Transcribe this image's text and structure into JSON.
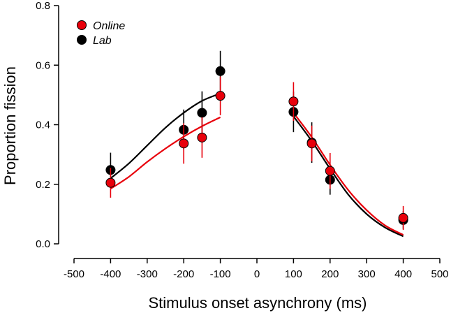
{
  "chart_data": {
    "type": "scatter",
    "xlabel": "Stimulus onset asynchrony (ms)",
    "ylabel": "Proportion fission",
    "xlim": [
      -500,
      500
    ],
    "ylim": [
      0.0,
      0.8
    ],
    "xticks": [
      -500,
      -400,
      -300,
      -200,
      -100,
      0,
      100,
      200,
      300,
      400,
      500
    ],
    "xtick_labels": [
      "-500",
      "-400",
      "-300",
      "-200",
      "-100",
      "0",
      "100",
      "200",
      "300",
      "400",
      "500"
    ],
    "yticks": [
      0.0,
      0.2,
      0.4,
      0.6,
      0.8
    ],
    "ytick_labels": [
      "0.0",
      "0.2",
      "0.4",
      "0.6",
      "0.8"
    ],
    "legend": [
      "Online",
      "Lab"
    ],
    "legend_position": "top-left",
    "series": [
      {
        "name": "Lab",
        "color": "#000000",
        "points": [
          {
            "x": -400,
            "y": 0.248,
            "err": 0.058
          },
          {
            "x": -200,
            "y": 0.383,
            "err": 0.068
          },
          {
            "x": -150,
            "y": 0.44,
            "err": 0.072
          },
          {
            "x": -100,
            "y": 0.58,
            "err": 0.068
          },
          {
            "x": 100,
            "y": 0.443,
            "err": 0.068
          },
          {
            "x": 150,
            "y": 0.34,
            "err": 0.068
          },
          {
            "x": 200,
            "y": 0.215,
            "err": 0.05
          },
          {
            "x": 400,
            "y": 0.08,
            "err": 0.03
          }
        ],
        "fit_left": [
          [
            -400,
            0.22
          ],
          [
            -350,
            0.27
          ],
          [
            -300,
            0.33
          ],
          [
            -250,
            0.39
          ],
          [
            -200,
            0.44
          ],
          [
            -150,
            0.48
          ],
          [
            -100,
            0.505
          ]
        ],
        "fit_right": [
          [
            100,
            0.428
          ],
          [
            150,
            0.345
          ],
          [
            200,
            0.252
          ],
          [
            250,
            0.165
          ],
          [
            300,
            0.1
          ],
          [
            350,
            0.055
          ],
          [
            400,
            0.025
          ]
        ]
      },
      {
        "name": "Online",
        "color": "#e8000b",
        "points": [
          {
            "x": -400,
            "y": 0.205,
            "err": 0.05
          },
          {
            "x": -200,
            "y": 0.337,
            "err": 0.068
          },
          {
            "x": -150,
            "y": 0.357,
            "err": 0.068
          },
          {
            "x": -100,
            "y": 0.497,
            "err": 0.065
          },
          {
            "x": 100,
            "y": 0.478,
            "err": 0.065
          },
          {
            "x": 150,
            "y": 0.337,
            "err": 0.06
          },
          {
            "x": 200,
            "y": 0.245,
            "err": 0.06
          },
          {
            "x": 400,
            "y": 0.087,
            "err": 0.04
          }
        ],
        "fit_left": [
          [
            -400,
            0.185
          ],
          [
            -350,
            0.225
          ],
          [
            -300,
            0.275
          ],
          [
            -250,
            0.32
          ],
          [
            -200,
            0.36
          ],
          [
            -150,
            0.395
          ],
          [
            -100,
            0.425
          ]
        ],
        "fit_right": [
          [
            100,
            0.44
          ],
          [
            150,
            0.358
          ],
          [
            200,
            0.265
          ],
          [
            250,
            0.18
          ],
          [
            300,
            0.113
          ],
          [
            350,
            0.062
          ],
          [
            400,
            0.03
          ]
        ]
      }
    ]
  }
}
